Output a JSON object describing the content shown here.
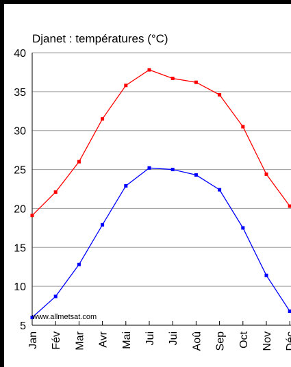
{
  "chart_data": {
    "type": "line",
    "title": "Djanet : températures (°C)",
    "watermark": "www.allmetsat.com",
    "categories": [
      "Jan",
      "Fév",
      "Mar",
      "Avr",
      "Mai",
      "Jui",
      "Jui",
      "Aoû",
      "Sep",
      "Oct",
      "Nov",
      "Déc"
    ],
    "ylim": [
      5,
      40
    ],
    "yticks": [
      5,
      10,
      15,
      20,
      25,
      30,
      35,
      40
    ],
    "grid": true,
    "series": [
      {
        "color": "#ff0000",
        "values": [
          19.1,
          22.1,
          26.0,
          31.5,
          35.8,
          37.8,
          36.7,
          36.2,
          34.6,
          30.5,
          24.4,
          20.3
        ]
      },
      {
        "color": "#0000ff",
        "values": [
          6.0,
          8.7,
          12.8,
          17.9,
          22.9,
          25.2,
          25.0,
          24.3,
          22.4,
          17.5,
          11.4,
          6.8
        ]
      }
    ]
  }
}
